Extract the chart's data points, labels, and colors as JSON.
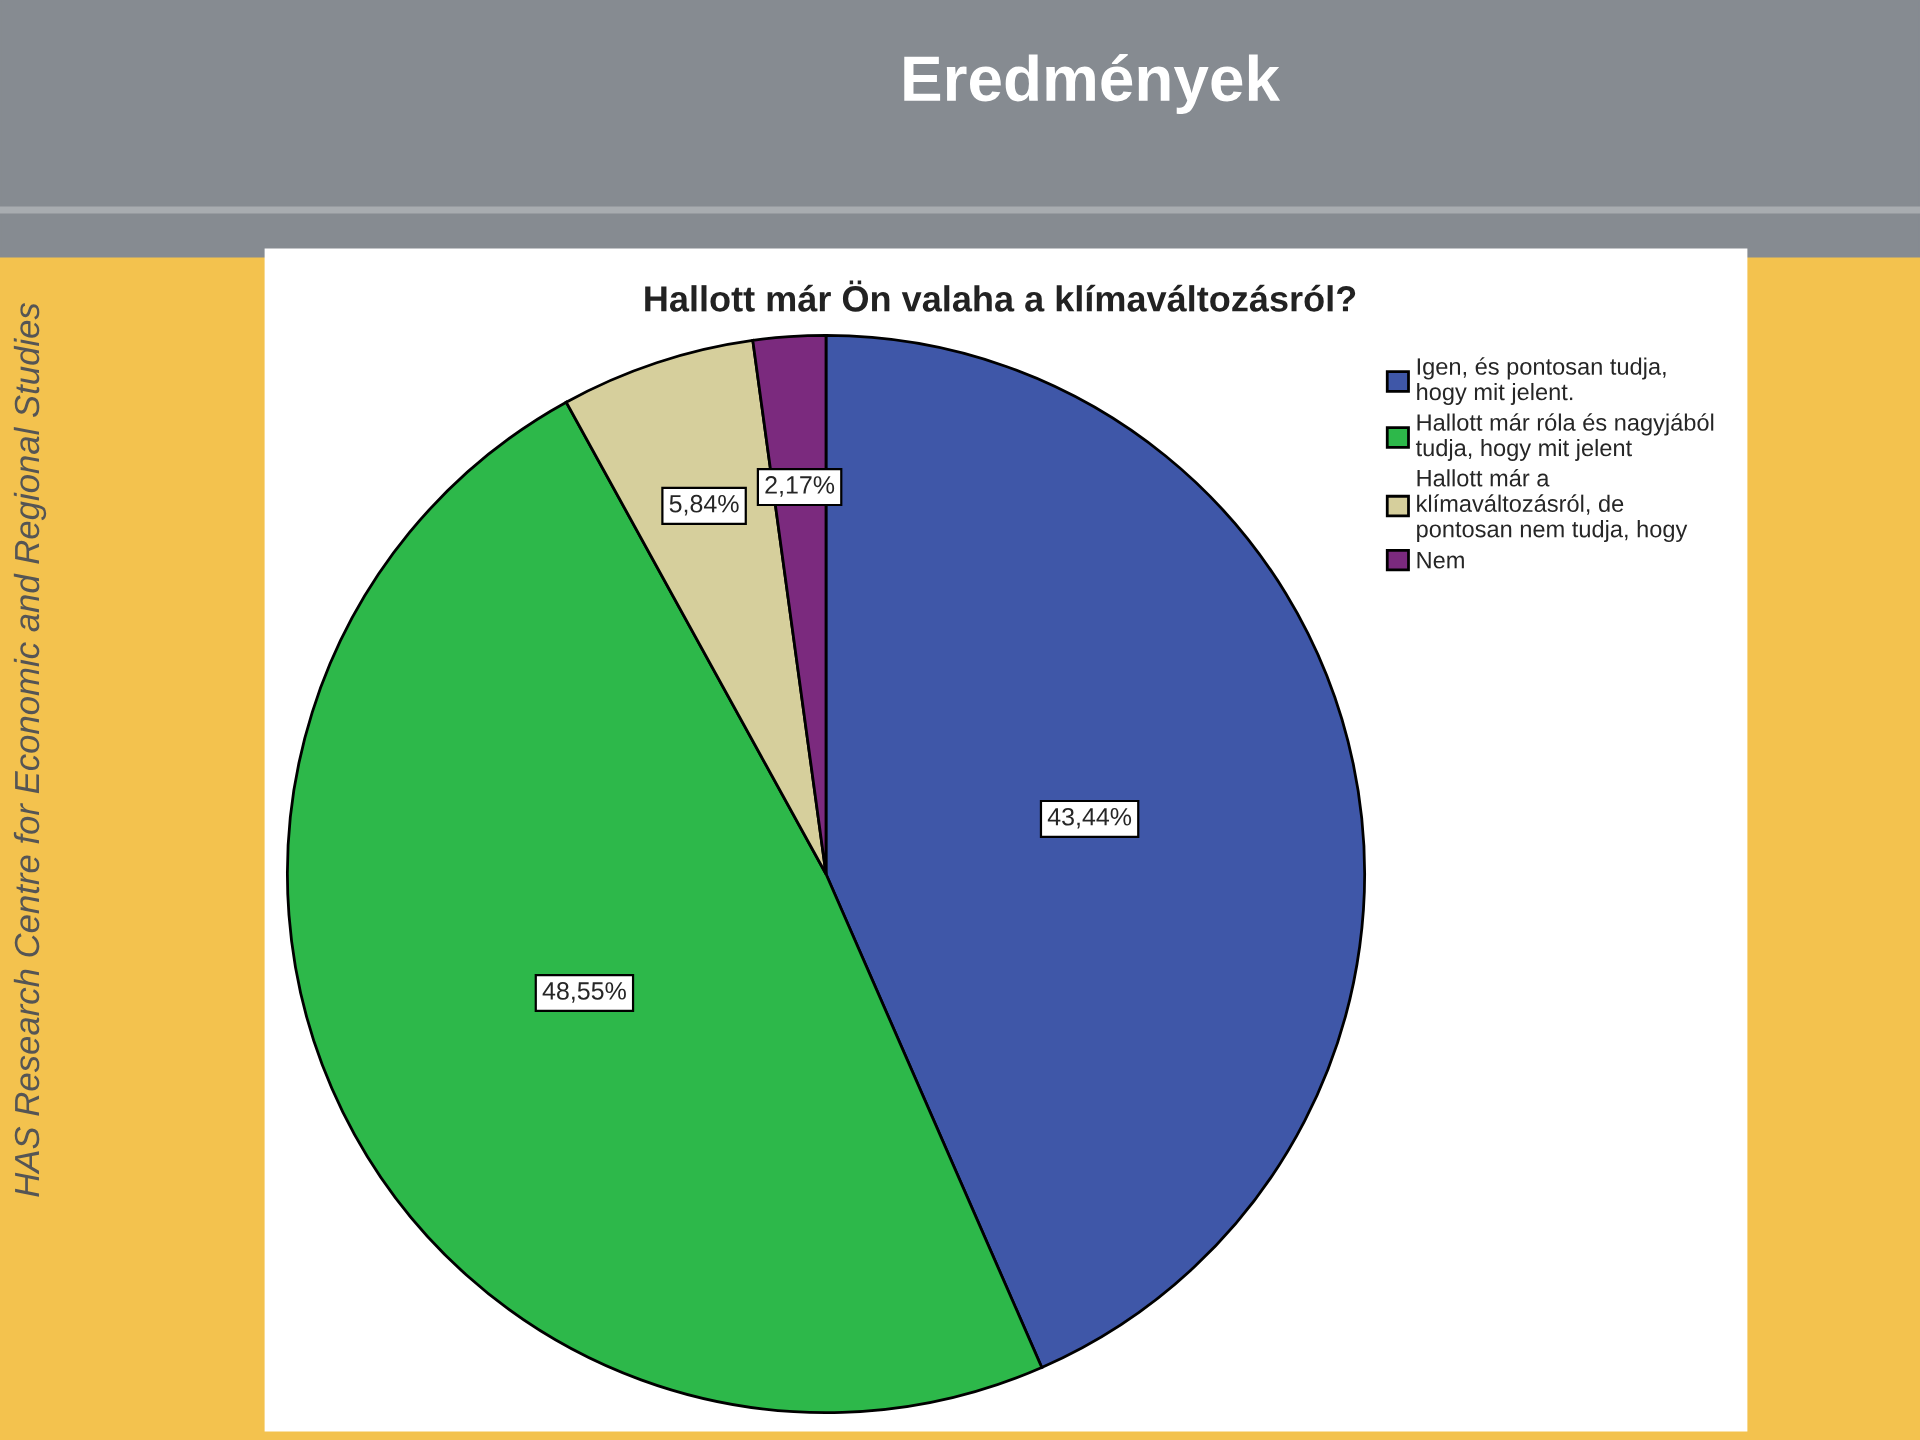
{
  "chart_data": {
    "type": "pie",
    "title": "Eredmények",
    "subtitle": "Hallott már Ön valaha a klímaváltozásról?",
    "categories": [
      "Igen, és pontosan tudja,\nhogy mit jelent.",
      "Hallott már róla és nagyjából\ntudja, hogy mit jelent",
      "Hallott már a\nklímaváltozásról, de\npontosan nem tudja, hogy",
      "Nem"
    ],
    "values": [
      43.44,
      48.55,
      5.84,
      2.17
    ],
    "value_labels": [
      "43,44%",
      "48,55%",
      "5,84%",
      "2,17%"
    ],
    "colors": [
      "#3f57a8",
      "#2db84a",
      "#d6cf9c",
      "#7b2a7e"
    ],
    "legend": "top right",
    "annotations": [
      "HAS Research Centre for Economic and Regional Studies"
    ]
  }
}
